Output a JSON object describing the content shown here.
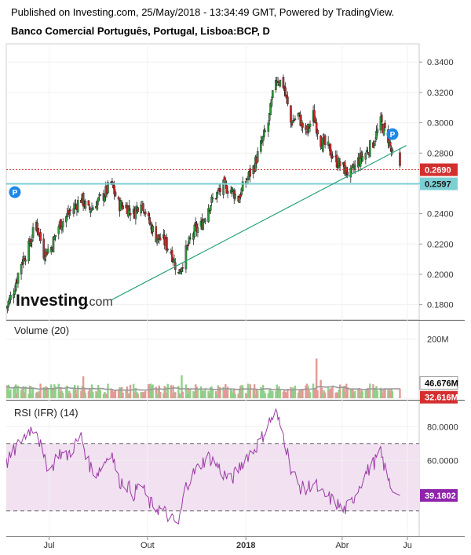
{
  "header": {
    "published": "Published on Investing.com, 25/May/2018 - 13:34:49 GMT, Powered by TradingView.",
    "symbol": "Banco Comercial Português, Portugal, Lisboa:BCP, D"
  },
  "logo": {
    "brand": "Investing",
    "suffix": ".com"
  },
  "colors": {
    "up": "#2e9a3c",
    "down": "#c62828",
    "support": "#7ccfd3",
    "trendline": "#26a17a",
    "last_price": "#d32f2f",
    "rsi": "#9c3aa6",
    "rsi_band": "#f1e1f1",
    "volume_ma": "#999999"
  },
  "chart_data": [
    {
      "type": "candlestick",
      "title": "Banco Comercial Português, Portugal, Lisboa:BCP, D",
      "ylim": [
        0.17,
        0.352
      ],
      "y_ticks": [
        "0.3400",
        "0.3200",
        "0.3000",
        "0.2800",
        "0.2600",
        "0.2400",
        "0.2200",
        "0.2000",
        "0.1800"
      ],
      "x_ticks": [
        "Jul",
        "Out",
        "2018",
        "Abr",
        "Ju"
      ],
      "time_range": [
        "2017-05-22",
        "2018-06-12"
      ],
      "last_price": {
        "label": "0.2690",
        "value": 0.269
      },
      "support_level": {
        "label": "0.2597",
        "value": 0.2597
      },
      "trendline": {
        "from": {
          "date": "2017-08-28",
          "value": 0.183
        },
        "to": {
          "date": "2018-05-31",
          "value": 0.285
        }
      },
      "markers": [
        {
          "label": "P",
          "date": "2017-05-30",
          "value": 0.2542
        },
        {
          "label": "P",
          "date": "2018-05-18",
          "value": 0.2925
        }
      ],
      "closes": [
        [
          "2017-05-22",
          0.178
        ],
        [
          "2017-05-29",
          0.19
        ],
        [
          "2017-06-05",
          0.208
        ],
        [
          "2017-06-12",
          0.218
        ],
        [
          "2017-06-19",
          0.234
        ],
        [
          "2017-06-26",
          0.214
        ],
        [
          "2017-07-03",
          0.218
        ],
        [
          "2017-07-10",
          0.232
        ],
        [
          "2017-07-17",
          0.238
        ],
        [
          "2017-07-24",
          0.244
        ],
        [
          "2017-07-31",
          0.25
        ],
        [
          "2017-08-07",
          0.242
        ],
        [
          "2017-08-14",
          0.247
        ],
        [
          "2017-08-21",
          0.252
        ],
        [
          "2017-08-28",
          0.26
        ],
        [
          "2017-09-04",
          0.246
        ],
        [
          "2017-09-11",
          0.245
        ],
        [
          "2017-09-18",
          0.24
        ],
        [
          "2017-09-25",
          0.25
        ],
        [
          "2017-10-02",
          0.235
        ],
        [
          "2017-10-09",
          0.225
        ],
        [
          "2017-10-16",
          0.222
        ],
        [
          "2017-10-23",
          0.215
        ],
        [
          "2017-10-30",
          0.2
        ],
        [
          "2017-11-06",
          0.215
        ],
        [
          "2017-11-13",
          0.228
        ],
        [
          "2017-11-20",
          0.232
        ],
        [
          "2017-11-27",
          0.245
        ],
        [
          "2017-12-04",
          0.252
        ],
        [
          "2017-12-11",
          0.258
        ],
        [
          "2017-12-18",
          0.256
        ],
        [
          "2017-12-25",
          0.25
        ],
        [
          "2018-01-01",
          0.262
        ],
        [
          "2018-01-08",
          0.27
        ],
        [
          "2018-01-15",
          0.285
        ],
        [
          "2018-01-22",
          0.3
        ],
        [
          "2018-01-29",
          0.33
        ],
        [
          "2018-02-05",
          0.325
        ],
        [
          "2018-02-12",
          0.3
        ],
        [
          "2018-02-19",
          0.305
        ],
        [
          "2018-02-26",
          0.292
        ],
        [
          "2018-03-05",
          0.305
        ],
        [
          "2018-03-12",
          0.288
        ],
        [
          "2018-03-19",
          0.283
        ],
        [
          "2018-03-26",
          0.275
        ],
        [
          "2018-04-02",
          0.27
        ],
        [
          "2018-04-09",
          0.266
        ],
        [
          "2018-04-16",
          0.275
        ],
        [
          "2018-04-23",
          0.28
        ],
        [
          "2018-04-30",
          0.287
        ],
        [
          "2018-05-07",
          0.3
        ],
        [
          "2018-05-14",
          0.29
        ],
        [
          "2018-05-21",
          0.269
        ]
      ]
    },
    {
      "type": "bar",
      "title": "Volume (20)",
      "y_ticks": [
        "200M",
        "0"
      ],
      "ylim_millions": [
        0,
        260
      ],
      "badges": [
        {
          "label": "46.676M",
          "value_millions": 46.676,
          "series": "Volume MA (20)"
        },
        {
          "label": "32.616M",
          "value_millions": 32.616,
          "series": "Volume"
        }
      ],
      "spikes_millions": [
        [
          "2017-08-02",
          74
        ],
        [
          "2017-11-02",
          78
        ],
        [
          "2018-03-08",
          134
        ],
        [
          "2018-03-12",
          62
        ]
      ],
      "typical_millions": 32
    },
    {
      "type": "line",
      "title": "RSI (IFR) (14)",
      "ylim": [
        15,
        95
      ],
      "y_ticks": [
        "80.0000",
        "60.0000"
      ],
      "bands": [
        30,
        70
      ],
      "last_value": {
        "label": "39.1802",
        "value": 39.1802
      },
      "values": [
        [
          "2017-05-22",
          58
        ],
        [
          "2017-05-29",
          65
        ],
        [
          "2017-06-05",
          72
        ],
        [
          "2017-06-12",
          78
        ],
        [
          "2017-06-19",
          80
        ],
        [
          "2017-06-26",
          60
        ],
        [
          "2017-07-03",
          55
        ],
        [
          "2017-07-10",
          65
        ],
        [
          "2017-07-17",
          62
        ],
        [
          "2017-07-24",
          68
        ],
        [
          "2017-07-31",
          74
        ],
        [
          "2017-08-07",
          58
        ],
        [
          "2017-08-14",
          52
        ],
        [
          "2017-08-21",
          58
        ],
        [
          "2017-08-28",
          66
        ],
        [
          "2017-09-04",
          48
        ],
        [
          "2017-09-11",
          46
        ],
        [
          "2017-09-18",
          40
        ],
        [
          "2017-09-25",
          46
        ],
        [
          "2017-10-02",
          35
        ],
        [
          "2017-10-09",
          32
        ],
        [
          "2017-10-16",
          30
        ],
        [
          "2017-10-23",
          25
        ],
        [
          "2017-10-30",
          22
        ],
        [
          "2017-11-06",
          45
        ],
        [
          "2017-11-13",
          52
        ],
        [
          "2017-11-20",
          58
        ],
        [
          "2017-11-27",
          62
        ],
        [
          "2017-12-04",
          58
        ],
        [
          "2017-12-11",
          52
        ],
        [
          "2017-12-18",
          48
        ],
        [
          "2017-12-25",
          55
        ],
        [
          "2018-01-01",
          62
        ],
        [
          "2018-01-08",
          66
        ],
        [
          "2018-01-15",
          72
        ],
        [
          "2018-01-22",
          82
        ],
        [
          "2018-01-29",
          88
        ],
        [
          "2018-02-05",
          75
        ],
        [
          "2018-02-12",
          56
        ],
        [
          "2018-02-19",
          45
        ],
        [
          "2018-02-26",
          42
        ],
        [
          "2018-03-05",
          48
        ],
        [
          "2018-03-12",
          40
        ],
        [
          "2018-03-19",
          38
        ],
        [
          "2018-03-26",
          35
        ],
        [
          "2018-04-02",
          30
        ],
        [
          "2018-04-09",
          34
        ],
        [
          "2018-04-16",
          44
        ],
        [
          "2018-04-23",
          52
        ],
        [
          "2018-04-30",
          58
        ],
        [
          "2018-05-07",
          64
        ],
        [
          "2018-05-14",
          48
        ],
        [
          "2018-05-21",
          39.1802
        ]
      ]
    }
  ]
}
